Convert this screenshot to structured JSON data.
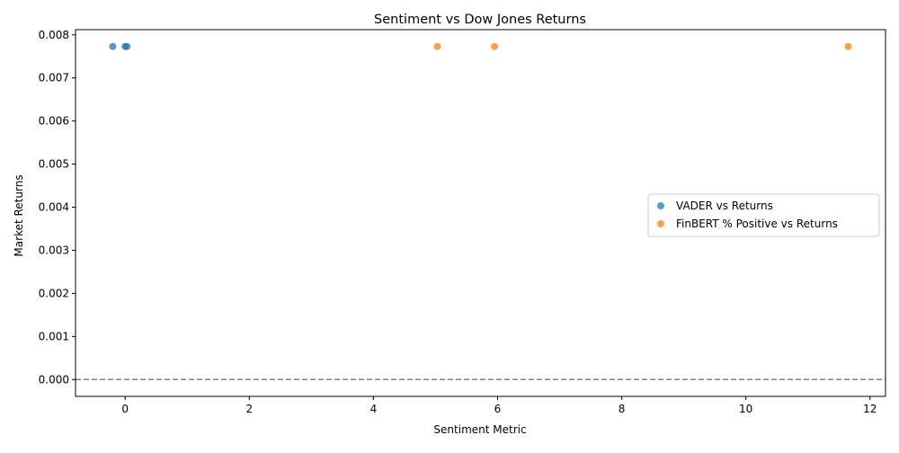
{
  "chart_data": {
    "type": "scatter",
    "title": "Sentiment vs Dow Jones Returns",
    "xlabel": "Sentiment Metric",
    "ylabel": "Market Returns",
    "xlim": [
      -0.8,
      12.25
    ],
    "ylim": [
      -0.00039,
      0.00812
    ],
    "xticks": [
      0,
      2,
      4,
      6,
      8,
      10,
      12
    ],
    "xtick_labels": [
      "0",
      "2",
      "4",
      "6",
      "8",
      "10",
      "12"
    ],
    "yticks": [
      0.0,
      0.001,
      0.002,
      0.003,
      0.004,
      0.005,
      0.006,
      0.007,
      0.008
    ],
    "ytick_labels": [
      "0.000",
      "0.001",
      "0.002",
      "0.003",
      "0.004",
      "0.005",
      "0.006",
      "0.007",
      "0.008"
    ],
    "grid": false,
    "reference_line": {
      "y": 0.0,
      "style": "dashed",
      "color": "#808080"
    },
    "legend_placement": "center-right",
    "series": [
      {
        "name": "VADER vs Returns",
        "color": "#1f77b4",
        "points": [
          {
            "x": -0.2,
            "y": 0.00773
          },
          {
            "x": 0.0,
            "y": 0.00773
          },
          {
            "x": 0.03,
            "y": 0.00773
          }
        ]
      },
      {
        "name": "FinBERT % Positive vs Returns",
        "color": "#ff7f0e",
        "points": [
          {
            "x": 5.03,
            "y": 0.00773
          },
          {
            "x": 5.95,
            "y": 0.00773
          },
          {
            "x": 11.65,
            "y": 0.00773
          }
        ]
      }
    ]
  }
}
